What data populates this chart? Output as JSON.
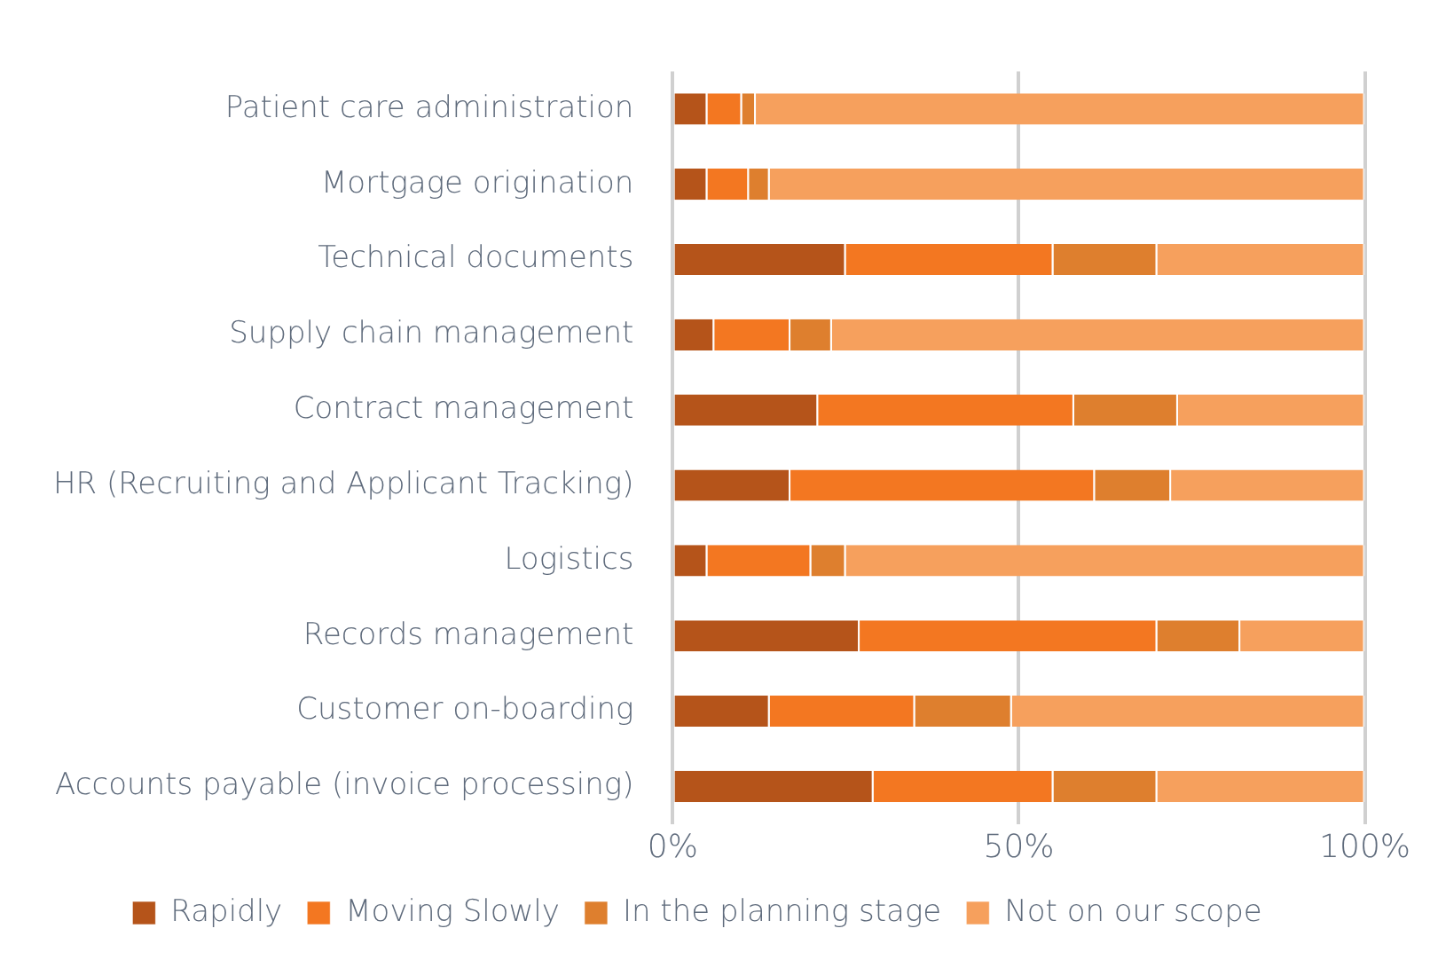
{
  "chart_data": {
    "type": "bar",
    "orientation": "horizontal",
    "stacked": true,
    "categories": [
      "Patient care administration",
      "Mortgage origination",
      "Technical documents",
      "Supply chain management",
      "Contract management",
      "HR (Recruiting and Applicant Tracking)",
      "Logistics",
      "Records management",
      "Customer on-boarding",
      "Accounts payable (invoice processing)"
    ],
    "series": [
      {
        "name": "Rapidly",
        "color": "#b5541a",
        "values": [
          5,
          5,
          25,
          6,
          21,
          17,
          5,
          27,
          14,
          29
        ]
      },
      {
        "name": "Moving Slowly",
        "color": "#f37721",
        "values": [
          5,
          6,
          30,
          11,
          37,
          44,
          15,
          43,
          21,
          26
        ]
      },
      {
        "name": "In the planning stage",
        "color": "#de7f2e",
        "values": [
          2,
          3,
          15,
          6,
          15,
          11,
          5,
          12,
          14,
          15
        ]
      },
      {
        "name": "Not on our scope",
        "color": "#f6a05d",
        "values": [
          88,
          86,
          30,
          77,
          27,
          28,
          75,
          18,
          51,
          30
        ]
      }
    ],
    "xlim": [
      0,
      100
    ],
    "xticks": [
      {
        "value": 0,
        "label": "0%"
      },
      {
        "value": 50,
        "label": "50%"
      },
      {
        "value": 100,
        "label": "100%"
      }
    ],
    "grid": "x",
    "legend": "bottom"
  }
}
